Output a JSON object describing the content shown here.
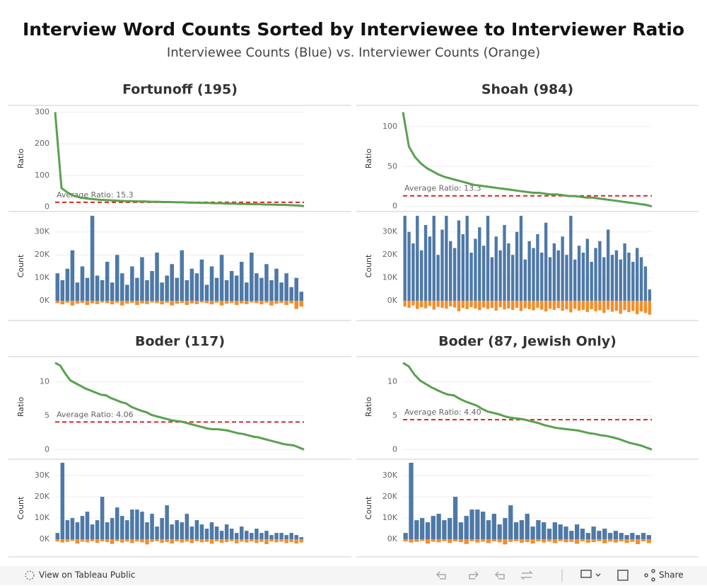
{
  "header": {
    "title": "Interview Word Counts Sorted by Interviewee to Interviewer Ratio",
    "subtitle": "Interviewee Counts (Blue) vs. Interviewer Counts (Orange)"
  },
  "chart_data": [
    {
      "type": "line",
      "title": "Fortunoff (195)",
      "y_label": "Ratio",
      "ylim": [
        -3,
        310
      ],
      "yticks": [
        0,
        100,
        200,
        300
      ],
      "color": "#59a14f",
      "average": 15.3,
      "average_label": "Average Ratio: 15.3",
      "average_color": "#d62728",
      "values": [
        300,
        60,
        45,
        35,
        30,
        27,
        25,
        23,
        22,
        21,
        20,
        19,
        19,
        18,
        18,
        17,
        17,
        16,
        16,
        15,
        15,
        14,
        14,
        13,
        13,
        12,
        12,
        11,
        11,
        10,
        10,
        9,
        9,
        8,
        8,
        7,
        7,
        6,
        5,
        3
      ]
    },
    {
      "type": "bar",
      "y_label": "Count",
      "ylim": [
        -7000,
        37300
      ],
      "yticks": [
        {
          "value": 0,
          "label": "0K"
        },
        {
          "value": 10000,
          "label": "10K"
        },
        {
          "value": 20000,
          "label": "20K"
        },
        {
          "value": 30000,
          "label": "30K"
        }
      ],
      "series": [
        {
          "color": "#4e79a7",
          "values": [
            12000,
            9000,
            14000,
            22000,
            8000,
            15000,
            10000,
            37000,
            11000,
            9000,
            17000,
            8000,
            20000,
            12000,
            7000,
            15000,
            10000,
            19000,
            9000,
            13000,
            21000,
            8000,
            11000,
            16000,
            10000,
            22000,
            9000,
            14000,
            12000,
            18000,
            7000,
            15000,
            10000,
            20000,
            9000,
            13000,
            11000,
            17000,
            8000,
            21000,
            12000,
            10000,
            16000,
            9000,
            14000,
            8000,
            12000,
            6000,
            10000,
            4000
          ]
        },
        {
          "color": "#f28e2b",
          "values": [
            -1000,
            -1500,
            -800,
            -2000,
            -1200,
            -900,
            -1800,
            -1100,
            -1400,
            -700,
            -1000,
            -1500,
            -800,
            -2000,
            -1200,
            -900,
            -1800,
            -1100,
            -1400,
            -700,
            -1000,
            -1500,
            -800,
            -2000,
            -1200,
            -900,
            -1800,
            -1100,
            -1400,
            -700,
            -1000,
            -1500,
            -800,
            -2000,
            -1200,
            -900,
            -1800,
            -1100,
            -1400,
            -700,
            -1000,
            -1500,
            -800,
            -2000,
            -1200,
            -900,
            -1800,
            -1100,
            -3500,
            -2500
          ]
        }
      ]
    },
    {
      "type": "line",
      "title": "Shoah (984)",
      "y_label": "Ratio",
      "ylim": [
        -2,
        122
      ],
      "yticks": [
        0,
        50,
        100
      ],
      "color": "#59a14f",
      "average": 13.3,
      "average_label": "Average Ratio: 13.3",
      "average_color": "#d62728",
      "values": [
        118,
        75,
        62,
        54,
        48,
        44,
        40,
        37,
        35,
        33,
        31,
        29,
        27,
        26,
        25,
        24,
        23,
        22,
        21,
        20,
        19,
        18,
        17,
        17,
        16,
        15,
        15,
        14,
        13,
        13,
        12,
        11,
        11,
        10,
        9,
        8,
        7,
        6,
        5,
        4,
        3,
        2,
        0
      ]
    },
    {
      "type": "bar",
      "y_label": "Count",
      "ylim": [
        -7000,
        37300
      ],
      "yticks": [
        {
          "value": 0,
          "label": "0K"
        },
        {
          "value": 10000,
          "label": "10K"
        },
        {
          "value": 20000,
          "label": "20K"
        },
        {
          "value": 30000,
          "label": "30K"
        }
      ],
      "series": [
        {
          "color": "#4e79a7",
          "values": [
            37000,
            30000,
            25000,
            37000,
            22000,
            33000,
            28000,
            37000,
            20000,
            31000,
            37000,
            26000,
            23000,
            35000,
            29000,
            37000,
            21000,
            27000,
            32000,
            24000,
            37000,
            19000,
            28000,
            22000,
            33000,
            25000,
            20000,
            30000,
            37000,
            18000,
            26000,
            23000,
            29000,
            21000,
            34000,
            19000,
            25000,
            22000,
            28000,
            20000,
            37000,
            18000,
            24000,
            21000,
            27000,
            17000,
            23000,
            26000,
            19000,
            31000,
            20000,
            22000,
            18000,
            25000,
            21000,
            17000,
            23000,
            19000,
            15000,
            5000
          ]
        },
        {
          "color": "#f28e2b",
          "values": [
            -2500,
            -3000,
            -2000,
            -3500,
            -2800,
            -3200,
            -2200,
            -3800,
            -2600,
            -3000,
            -3400,
            -2400,
            -2900,
            -4500,
            -3100,
            -3600,
            -2700,
            -3300,
            -4000,
            -2900,
            -3500,
            -3100,
            -4200,
            -2800,
            -3700,
            -3300,
            -3900,
            -3000,
            -4400,
            -3200,
            -3600,
            -4100,
            -3000,
            -3800,
            -4600,
            -3400,
            -3900,
            -3200,
            -4300,
            -3700,
            -5000,
            -3500,
            -4200,
            -3900,
            -4800,
            -3600,
            -4500,
            -4100,
            -5200,
            -3800,
            -4700,
            -4300,
            -5600,
            -4000,
            -4900,
            -4400,
            -5800,
            -4600,
            -5300,
            -6000
          ]
        }
      ]
    },
    {
      "type": "line",
      "title": "Boder (117)",
      "y_label": "Ratio",
      "ylim": [
        -0.6,
        13.2
      ],
      "yticks": [
        0,
        5,
        10
      ],
      "color": "#59a14f",
      "average": 4.06,
      "average_label": "Average Ratio: 4.06",
      "average_color": "#d62728",
      "values": [
        12.8,
        12.4,
        11.2,
        10.2,
        9.8,
        9.4,
        9.0,
        8.7,
        8.4,
        8.1,
        8.0,
        7.6,
        7.3,
        7.0,
        6.8,
        6.3,
        6.0,
        5.7,
        5.5,
        5.1,
        4.9,
        4.7,
        4.5,
        4.3,
        4.2,
        4.1,
        3.9,
        3.7,
        3.5,
        3.3,
        3.1,
        3.0,
        3.0,
        2.9,
        2.8,
        2.6,
        2.4,
        2.3,
        2.1,
        1.9,
        1.8,
        1.6,
        1.4,
        1.2,
        1.0,
        0.8,
        0.7,
        0.6,
        0.3,
        0
      ]
    },
    {
      "type": "bar",
      "y_label": "Count",
      "ylim": [
        -6600,
        36000
      ],
      "yticks": [
        {
          "value": 0,
          "label": "0K"
        },
        {
          "value": 10000,
          "label": "10K"
        },
        {
          "value": 20000,
          "label": "20K"
        },
        {
          "value": 30000,
          "label": "30K"
        }
      ],
      "series": [
        {
          "color": "#4e79a7",
          "values": [
            3000,
            36000,
            9000,
            10000,
            8000,
            11000,
            13000,
            7000,
            9000,
            20000,
            8000,
            10000,
            15000,
            11000,
            9000,
            14000,
            14000,
            13000,
            8000,
            12000,
            6000,
            10000,
            16000,
            7000,
            9000,
            8000,
            12000,
            6000,
            9000,
            7000,
            5000,
            8000,
            6000,
            4000,
            7000,
            5000,
            3000,
            6000,
            4000,
            3000,
            5000,
            3000,
            4000,
            2000,
            3000,
            3000,
            2000,
            3000,
            2000,
            1000
          ]
        },
        {
          "color": "#f28e2b",
          "values": [
            -1000,
            -1500,
            -1200,
            -800,
            -2000,
            -1100,
            -1400,
            -900,
            -1700,
            -1000,
            -1300,
            -2200,
            -900,
            -1500,
            -1100,
            -1800,
            -1000,
            -1400,
            -2400,
            -1200,
            -900,
            -1600,
            -1300,
            -2000,
            -1000,
            -1500,
            -1100,
            -1800,
            -900,
            -1400,
            -1200,
            -2100,
            -1000,
            -1600,
            -1300,
            -900,
            -1900,
            -1100,
            -1500,
            -1000,
            -1700,
            -1200,
            -2300,
            -1000,
            -1400,
            -1100,
            -1800,
            -1300,
            -2000,
            -1500
          ]
        }
      ]
    },
    {
      "type": "line",
      "title": "Boder (87, Jewish Only)",
      "y_label": "Ratio",
      "ylim": [
        -0.6,
        13.2
      ],
      "yticks": [
        0,
        5,
        10
      ],
      "color": "#59a14f",
      "average": 4.4,
      "average_label": "Average Ratio: 4.40",
      "average_color": "#d62728",
      "values": [
        12.8,
        12.3,
        11.1,
        10.2,
        9.7,
        9.2,
        8.8,
        8.4,
        8.1,
        8.0,
        7.5,
        7.1,
        6.8,
        6.5,
        6.0,
        5.6,
        5.4,
        5.2,
        4.9,
        4.7,
        4.6,
        4.5,
        4.3,
        4.1,
        3.9,
        3.6,
        3.4,
        3.2,
        3.1,
        3.0,
        2.9,
        2.8,
        2.6,
        2.4,
        2.3,
        2.1,
        2.0,
        1.8,
        1.6,
        1.3,
        1.0,
        0.8,
        0.6,
        0.3,
        0
      ]
    },
    {
      "type": "bar",
      "y_label": "Count",
      "ylim": [
        -6600,
        36000
      ],
      "yticks": [
        {
          "value": 0,
          "label": "0K"
        },
        {
          "value": 10000,
          "label": "10K"
        },
        {
          "value": 20000,
          "label": "20K"
        },
        {
          "value": 30000,
          "label": "30K"
        }
      ],
      "series": [
        {
          "color": "#4e79a7",
          "values": [
            3000,
            36000,
            9000,
            10000,
            8000,
            11000,
            12000,
            9000,
            10000,
            20000,
            8000,
            11000,
            14000,
            14000,
            13000,
            9000,
            12000,
            7000,
            10000,
            16000,
            8000,
            9000,
            12000,
            6000,
            9000,
            8000,
            5000,
            8000,
            7000,
            6000,
            4000,
            7000,
            5000,
            3000,
            6000,
            4000,
            5000,
            3000,
            4000,
            3000,
            2000,
            3000,
            2000,
            3000,
            2000
          ]
        },
        {
          "color": "#f28e2b",
          "values": [
            -1000,
            -1500,
            -1200,
            -800,
            -2000,
            -1100,
            -1400,
            -900,
            -1700,
            -1000,
            -1300,
            -2200,
            -900,
            -1500,
            -1100,
            -1800,
            -1000,
            -1400,
            -2400,
            -1200,
            -900,
            -1600,
            -1300,
            -2000,
            -1000,
            -1500,
            -1100,
            -1800,
            -900,
            -1400,
            -1200,
            -2100,
            -1000,
            -1600,
            -1300,
            -900,
            -1900,
            -1100,
            -1500,
            -1000,
            -1700,
            -1200,
            -2300,
            -1000,
            -1800
          ]
        }
      ]
    }
  ],
  "footer": {
    "view_link": "View on Tableau Public",
    "share": "Share"
  }
}
